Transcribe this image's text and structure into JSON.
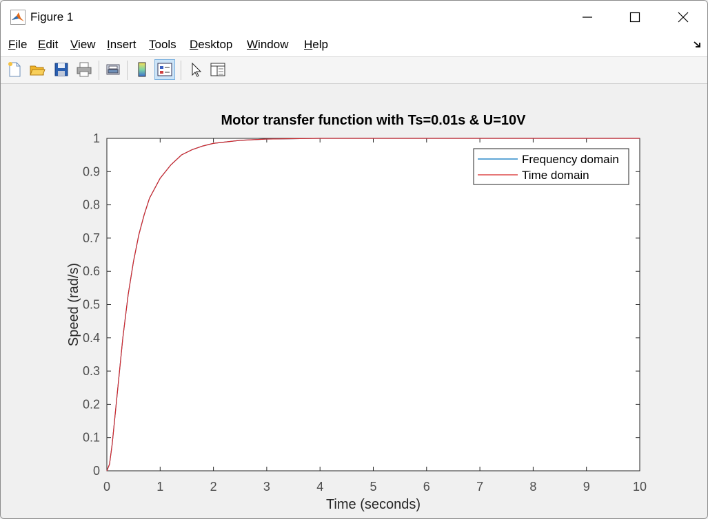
{
  "window": {
    "title": "Figure 1",
    "app_icon": "matlab-logo-icon"
  },
  "menu": [
    {
      "label": "File",
      "u": "F",
      "rest": "ile"
    },
    {
      "label": "Edit",
      "u": "E",
      "rest": "dit"
    },
    {
      "label": "View",
      "u": "V",
      "rest": "iew"
    },
    {
      "label": "Insert",
      "u": "I",
      "rest": "nsert"
    },
    {
      "label": "Tools",
      "u": "T",
      "rest": "ools"
    },
    {
      "label": "Desktop",
      "u": "D",
      "rest": "esktop"
    },
    {
      "label": "Window",
      "u": "W",
      "rest": "indow"
    },
    {
      "label": "Help",
      "u": "H",
      "rest": "elp"
    }
  ],
  "toolbar": [
    "new-figure-icon",
    "open-file-icon",
    "save-icon",
    "print-icon",
    "link-plot-icon",
    "colorbar-icon",
    "legend-icon",
    "pointer-icon",
    "property-inspector-icon"
  ],
  "chart_data": {
    "type": "line",
    "title": "Motor transfer function with Ts=0.01s & U=10V",
    "xlabel": "Time (seconds)",
    "ylabel": "Speed (rad/s)",
    "xlim": [
      0,
      10
    ],
    "ylim": [
      0,
      1
    ],
    "xticks": [
      0,
      1,
      2,
      3,
      4,
      5,
      6,
      7,
      8,
      9,
      10
    ],
    "yticks": [
      0,
      0.1,
      0.2,
      0.3,
      0.4,
      0.5,
      0.6,
      0.7,
      0.8,
      0.9,
      1
    ],
    "grid": false,
    "legend_position": "top-right",
    "x": [
      0,
      0.05,
      0.1,
      0.15,
      0.2,
      0.3,
      0.4,
      0.5,
      0.6,
      0.7,
      0.8,
      1.0,
      1.2,
      1.4,
      1.6,
      1.8,
      2.0,
      2.5,
      3.0,
      3.5,
      4.0,
      5.0,
      6.0,
      7.0,
      8.0,
      9.0,
      10.0
    ],
    "series": [
      {
        "name": "Frequency domain",
        "color": "#0072bd",
        "values": [
          0,
          0.02,
          0.08,
          0.16,
          0.24,
          0.4,
          0.53,
          0.63,
          0.71,
          0.77,
          0.82,
          0.88,
          0.92,
          0.95,
          0.966,
          0.977,
          0.985,
          0.994,
          0.998,
          0.999,
          1,
          1,
          1,
          1,
          1,
          1,
          1
        ]
      },
      {
        "name": "Time domain",
        "color": "#d62728",
        "values": [
          0,
          0.02,
          0.08,
          0.16,
          0.24,
          0.4,
          0.53,
          0.63,
          0.71,
          0.77,
          0.82,
          0.88,
          0.92,
          0.95,
          0.966,
          0.977,
          0.985,
          0.994,
          0.998,
          0.999,
          1,
          1,
          1,
          1,
          1,
          1,
          1
        ]
      }
    ]
  }
}
